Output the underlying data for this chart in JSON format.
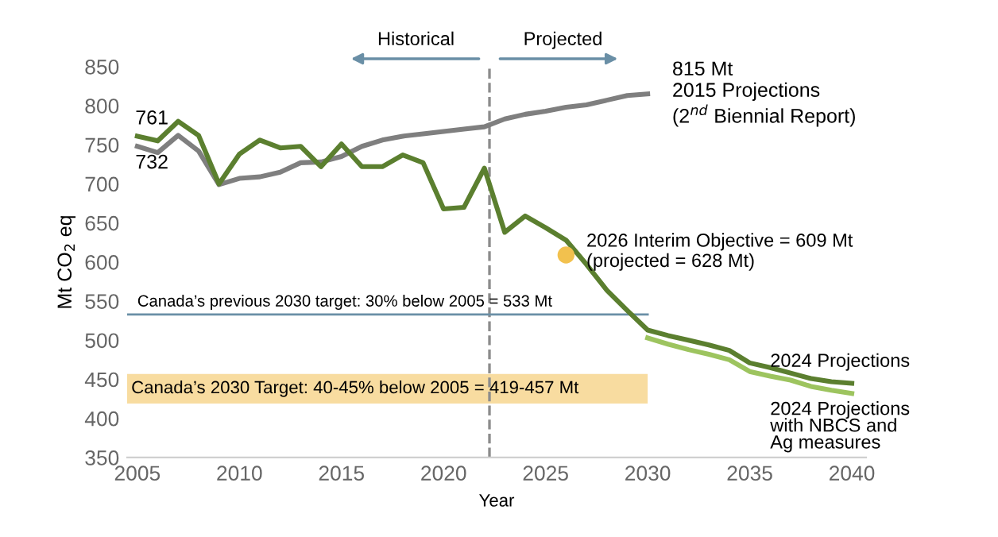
{
  "chart_data": {
    "type": "line",
    "xlabel": "Year",
    "ylabel": "Mt CO$_{2}$ eq",
    "xlim": [
      2004.5,
      2040.7
    ],
    "xticks": [
      2005,
      2010,
      2015,
      2020,
      2025,
      2030,
      2035,
      2040
    ],
    "ylim": [
      350,
      850
    ],
    "yticks": [
      350,
      400,
      450,
      500,
      550,
      600,
      650,
      700,
      750,
      800,
      850
    ],
    "grid": false,
    "marker": "none",
    "line_style": "solid",
    "series": [
      {
        "name": "815 Mt\n2015 Projections\n(2$^{nd}$ Biennial Report)",
        "color": "#7f7f7f",
        "x": [
          2005,
          2006,
          2007,
          2008,
          2009,
          2010,
          2011,
          2012,
          2013,
          2014,
          2015,
          2016,
          2017,
          2018,
          2019,
          2020,
          2021,
          2022,
          2023,
          2024,
          2025,
          2026,
          2027,
          2028,
          2029,
          2030
        ],
        "values": [
          748,
          740,
          762,
          742,
          699,
          707,
          709,
          715,
          727,
          728,
          735,
          748,
          756,
          761,
          764,
          767,
          770,
          773,
          783,
          789,
          793,
          798,
          801,
          807,
          813,
          815
        ]
      },
      {
        "name": "2024 Projections",
        "color": "#5b7f2f",
        "x": [
          2005,
          2006,
          2007,
          2008,
          2009,
          2010,
          2011,
          2012,
          2013,
          2014,
          2015,
          2016,
          2017,
          2018,
          2019,
          2020,
          2021,
          2022,
          2023,
          2024,
          2025,
          2026,
          2027,
          2028,
          2029,
          2030,
          2031,
          2032,
          2033,
          2034,
          2035,
          2036,
          2037,
          2038,
          2039,
          2040
        ],
        "values": [
          761,
          755,
          780,
          762,
          700,
          738,
          756,
          746,
          748,
          722,
          751,
          722,
          722,
          737,
          727,
          668,
          670,
          720,
          638,
          659,
          644,
          628,
          597,
          564,
          538,
          513,
          506,
          500,
          494,
          487,
          471,
          465,
          458,
          451,
          447,
          445
        ]
      },
      {
        "name": "2024 Projections\nwith NBCS and\nAg measures",
        "color": "#9dc45f",
        "x": [
          2030,
          2031,
          2032,
          2033,
          2034,
          2035,
          2036,
          2037,
          2038,
          2039,
          2040
        ],
        "values": [
          503,
          495,
          488,
          482,
          475,
          460,
          454,
          449,
          441,
          436,
          432
        ]
      },
      {
        "type": "scatter",
        "marker": "circle",
        "color": "#f2c14e",
        "x": [
          2026
        ],
        "values": [
          609
        ]
      }
    ],
    "ref_lines": [
      {
        "axis": "x",
        "value": 2022.25,
        "color": "#8c8c8c",
        "line_style": "dashed"
      },
      {
        "axis": "y",
        "value": 533,
        "label": "Canada’s previous 2030 target: 30% below 2005 = 533 Mt",
        "color": "#6a8fa6",
        "line_style": "solid"
      }
    ],
    "bands": [
      {
        "axis": "y",
        "from": 419,
        "to": 457,
        "label": "Canada’s 2030 Target: 40-45% below 2005 = 419-457 Mt",
        "color": "#f8dca0"
      }
    ],
    "annotations": [
      "Historical",
      "Projected",
      "761",
      "732",
      {
        "text": "2026 Interim Objective = 609 Mt\n(projected = 628 Mt)",
        "x": 2026,
        "y": 609
      }
    ]
  }
}
